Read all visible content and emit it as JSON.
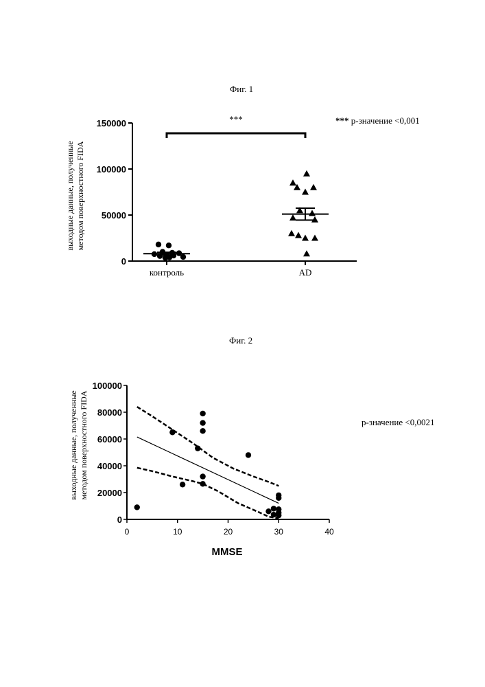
{
  "figures": [
    {
      "caption": "Фиг. 1",
      "note": "р-значение <0,001",
      "note_stars": "***"
    },
    {
      "caption": "Фиг. 2",
      "note": "р-значение <0,0021"
    }
  ],
  "chart_data": [
    {
      "type": "scatter",
      "subtype": "column dot plot with mean ± SEM",
      "ylabel_line1": "выходные данные, полученные",
      "ylabel_line2": "методом поверхностного FIDA",
      "categories": [
        "контроль",
        "AD"
      ],
      "ylim": [
        0,
        150000
      ],
      "yticks": [
        "0",
        "50000",
        "100000",
        "150000"
      ],
      "significance": "***",
      "series": [
        {
          "category": "контроль",
          "marker": "circle",
          "values": [
            18000,
            17000,
            10000,
            9000,
            8500,
            7500,
            7000,
            6000,
            5500,
            4500,
            4000,
            3500
          ],
          "mean": 8000,
          "sem": 1500
        },
        {
          "category": "AD",
          "marker": "triangle",
          "values": [
            95000,
            85000,
            80000,
            80000,
            75000,
            55000,
            52000,
            47000,
            45000,
            30000,
            28000,
            25000,
            25000,
            8000
          ],
          "mean": 51000,
          "sem": 6500
        }
      ]
    },
    {
      "type": "scatter",
      "subtype": "scatter with linear regression and 95% confidence band",
      "ylabel_line1": "выходные данные, полученные",
      "ylabel_line2": "методом поверхностного FIDA",
      "xlabel": "MMSE",
      "xlim": [
        0,
        40
      ],
      "ylim": [
        0,
        100000
      ],
      "xticks": [
        "0",
        "10",
        "20",
        "30",
        "40"
      ],
      "yticks": [
        "0",
        "20000",
        "40000",
        "60000",
        "80000",
        "100000"
      ],
      "points": [
        [
          2,
          9000
        ],
        [
          9,
          65000
        ],
        [
          11,
          26000
        ],
        [
          14,
          53000
        ],
        [
          15,
          79000
        ],
        [
          15,
          72000
        ],
        [
          15,
          66000
        ],
        [
          15,
          32000
        ],
        [
          15,
          26500
        ],
        [
          24,
          48000
        ],
        [
          28,
          6000
        ],
        [
          29,
          8000
        ],
        [
          29,
          3500
        ],
        [
          30,
          18000
        ],
        [
          30,
          16000
        ],
        [
          30,
          7500
        ],
        [
          30,
          5000
        ],
        [
          30,
          3000
        ]
      ],
      "regression": {
        "x": [
          2,
          30
        ],
        "y": [
          61500,
          12000
        ]
      },
      "confidence_upper": {
        "x": [
          2,
          5,
          9,
          13,
          17,
          21,
          25,
          28,
          30
        ],
        "y": [
          84000,
          77000,
          67000,
          57000,
          46000,
          38000,
          32000,
          28000,
          25000
        ]
      },
      "confidence_lower": {
        "x": [
          2,
          5,
          9,
          13,
          15,
          18,
          22,
          26,
          28,
          30
        ],
        "y": [
          38500,
          36000,
          32000,
          28500,
          26500,
          21000,
          12000,
          5500,
          2000,
          800
        ]
      }
    }
  ]
}
